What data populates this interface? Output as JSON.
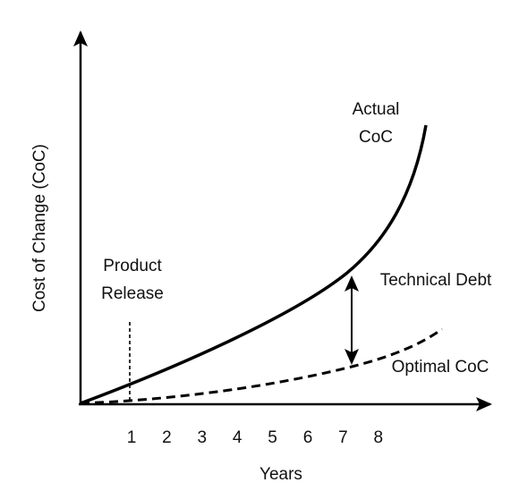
{
  "y_axis_label": "Cost of Change (CoC)",
  "x_axis_label": "Years",
  "x_ticks": [
    1,
    2,
    3,
    4,
    5,
    6,
    7,
    8
  ],
  "annotations": {
    "actual": [
      "Actual",
      "CoC"
    ],
    "product_release": [
      "Product",
      "Release"
    ],
    "technical_debt": "Technical Debt",
    "optimal": "Optimal CoC"
  }
}
